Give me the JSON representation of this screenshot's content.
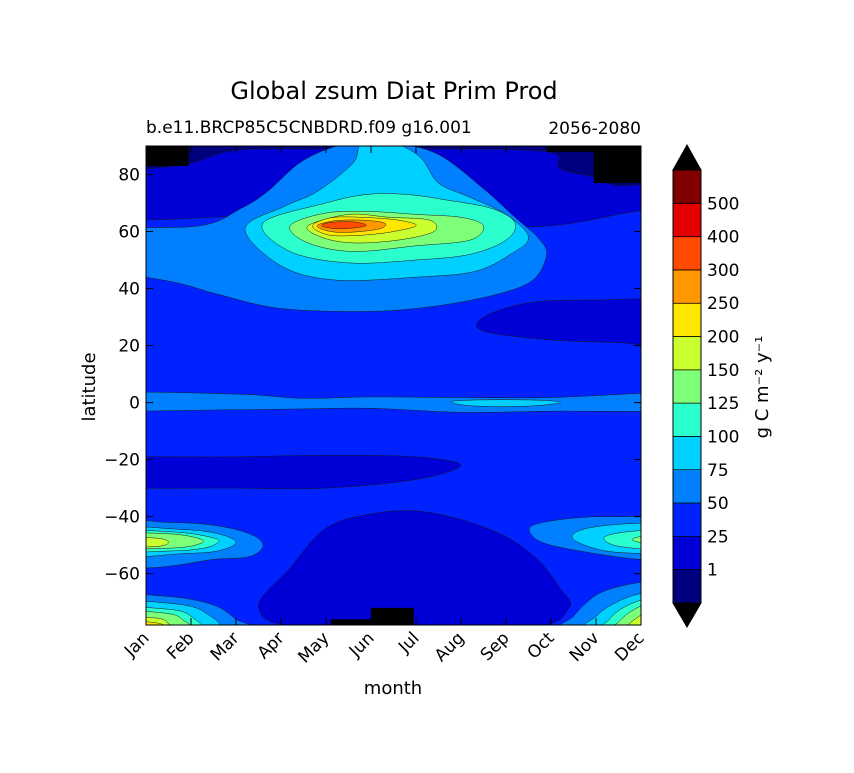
{
  "chart_data": {
    "type": "heatmap",
    "subtype": "filled-contour",
    "title": "Global zsum Diat Prim Prod",
    "subtitle_left": "b.e11.BRCP85C5CNBDRD.f09 g16.001",
    "subtitle_right": "2056-2080",
    "xlabel": "month",
    "ylabel": "latitude",
    "x_ticks": [
      "Jan",
      "Feb",
      "Mar",
      "Apr",
      "May",
      "Jun",
      "Jul",
      "Aug",
      "Sep",
      "Oct",
      "Nov",
      "Dec"
    ],
    "y_ticks": [
      80,
      60,
      40,
      20,
      0,
      -20,
      -40,
      -60
    ],
    "ylim": [
      -78,
      90
    ],
    "xlim": [
      0,
      11
    ],
    "colorbar": {
      "label": "g C m⁻² y⁻¹",
      "tick_labels": [
        "1",
        "25",
        "50",
        "75",
        "100",
        "125",
        "150",
        "200",
        "250",
        "300",
        "400",
        "500"
      ],
      "levels": [
        0,
        1,
        25,
        50,
        75,
        100,
        125,
        150,
        200,
        250,
        300,
        400,
        500,
        600
      ],
      "colors": [
        "#00007f",
        "#0000d6",
        "#0022ff",
        "#0080ff",
        "#00d0ff",
        "#2affcd",
        "#7dff7a",
        "#c9ff2e",
        "#ffe600",
        "#ff9800",
        "#ff4a00",
        "#e30000",
        "#800000"
      ],
      "under_color": "#000000",
      "over_color": "#000000"
    },
    "missing_color": "#000000",
    "missing_regions": [
      {
        "x": [
          0,
          0.95
        ],
        "y": [
          83,
          90
        ]
      },
      {
        "x": [
          8.9,
          10.95
        ],
        "y": [
          88,
          90
        ]
      },
      {
        "x": [
          9.95,
          11
        ],
        "y": [
          77,
          90
        ]
      },
      {
        "x": [
          4.1,
          5.9
        ],
        "y": [
          -78,
          -76
        ]
      },
      {
        "x": [
          5,
          5.95
        ],
        "y": [
          -78,
          -72
        ]
      }
    ],
    "features": [
      {
        "region": "arctic spring-summer bloom",
        "x": [
          2.5,
          8.5
        ],
        "lat": [
          40,
          90
        ],
        "peak_value": 350,
        "peak_at": {
          "x": 4.4,
          "lat": 62
        }
      },
      {
        "region": "equatorial band",
        "x": [
          0,
          11
        ],
        "lat": [
          -3,
          3
        ],
        "peak_value": 110,
        "peak_at": {
          "x": 7.8,
          "lat": 0
        }
      },
      {
        "region": "southern ocean band (austral summer)",
        "x": [
          0,
          2.5
        ],
        "lat": [
          -60,
          -40
        ],
        "peak_value": 210,
        "peak_at": {
          "x": 0.3,
          "lat": -49
        }
      },
      {
        "region": "southern ocean band (austral summer)",
        "x": [
          8.5,
          11
        ],
        "lat": [
          -60,
          -40
        ],
        "peak_value": 150,
        "peak_at": {
          "x": 10.8,
          "lat": -48
        }
      },
      {
        "region": "antarctic coastal bloom",
        "x": [
          0,
          1.5
        ],
        "lat": [
          -78,
          -68
        ],
        "peak_value": 250,
        "peak_at": {
          "x": 0.1,
          "lat": -77
        }
      },
      {
        "region": "antarctic coastal bloom",
        "x": [
          9.5,
          11
        ],
        "lat": [
          -78,
          -68
        ],
        "peak_value": 300,
        "peak_at": {
          "x": 10.95,
          "lat": -77
        }
      },
      {
        "region": "subtropical gyres (low)",
        "x": [
          0,
          11
        ],
        "lat": [
          -35,
          35
        ],
        "min_value": 1
      }
    ]
  }
}
